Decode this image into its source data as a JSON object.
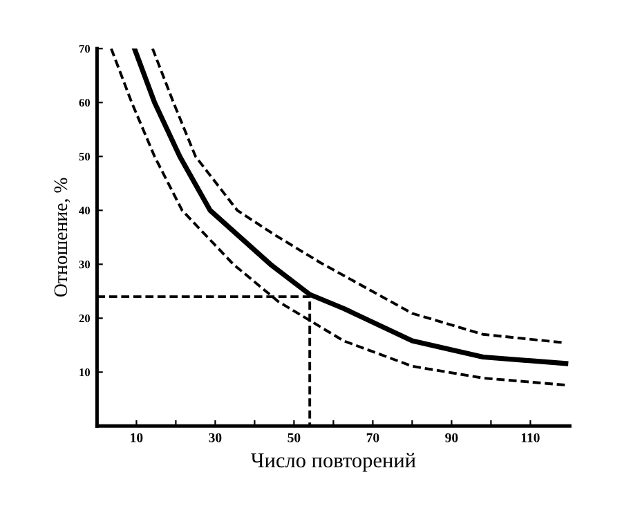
{
  "chart_data": {
    "type": "line",
    "xlabel": "Число повторений",
    "ylabel": "Отношение, %",
    "xlim": [
      0,
      120
    ],
    "ylim": [
      0,
      70
    ],
    "xticks": [
      10,
      {
        "value": 20,
        "label": null
      },
      30,
      {
        "value": 40,
        "label": null
      },
      50,
      {
        "value": 60,
        "label": null
      },
      70,
      {
        "value": 80,
        "label": null
      },
      90,
      {
        "value": 100,
        "label": null
      },
      110
    ],
    "yticks": [
      10,
      20,
      30,
      40,
      50,
      60,
      70
    ],
    "grid": false,
    "legend": false,
    "marker": "none",
    "series": [
      {
        "color": "#000000",
        "line_style": "solid",
        "x": [
          9.5,
          14.6,
          21,
          28.7,
          44,
          54,
          62.6,
          80,
          98,
          119
        ],
        "values": [
          70,
          60,
          50,
          40,
          30,
          24.4,
          21.8,
          15.8,
          12.8,
          11.6
        ]
      },
      {
        "color": "#000000",
        "line_style": "dashed",
        "x": [
          14.1,
          19.4,
          25,
          35.6,
          45,
          56.7,
          80,
          98,
          118
        ],
        "values": [
          70,
          60,
          50,
          40,
          35.5,
          30.3,
          20.9,
          17,
          15.5
        ]
      },
      {
        "color": "#000000",
        "line_style": "dashed",
        "x": [
          3.6,
          8.8,
          14.6,
          21.6,
          34.6,
          46,
          62.6,
          80,
          98,
          119
        ],
        "values": [
          70,
          60,
          50,
          40,
          30,
          23.1,
          15.8,
          11.1,
          8.9,
          7.6
        ]
      },
      {
        "color": "#000000",
        "line_style": "dashed",
        "x": [
          0,
          54,
          54
        ],
        "values": [
          24,
          24,
          0
        ]
      }
    ]
  }
}
